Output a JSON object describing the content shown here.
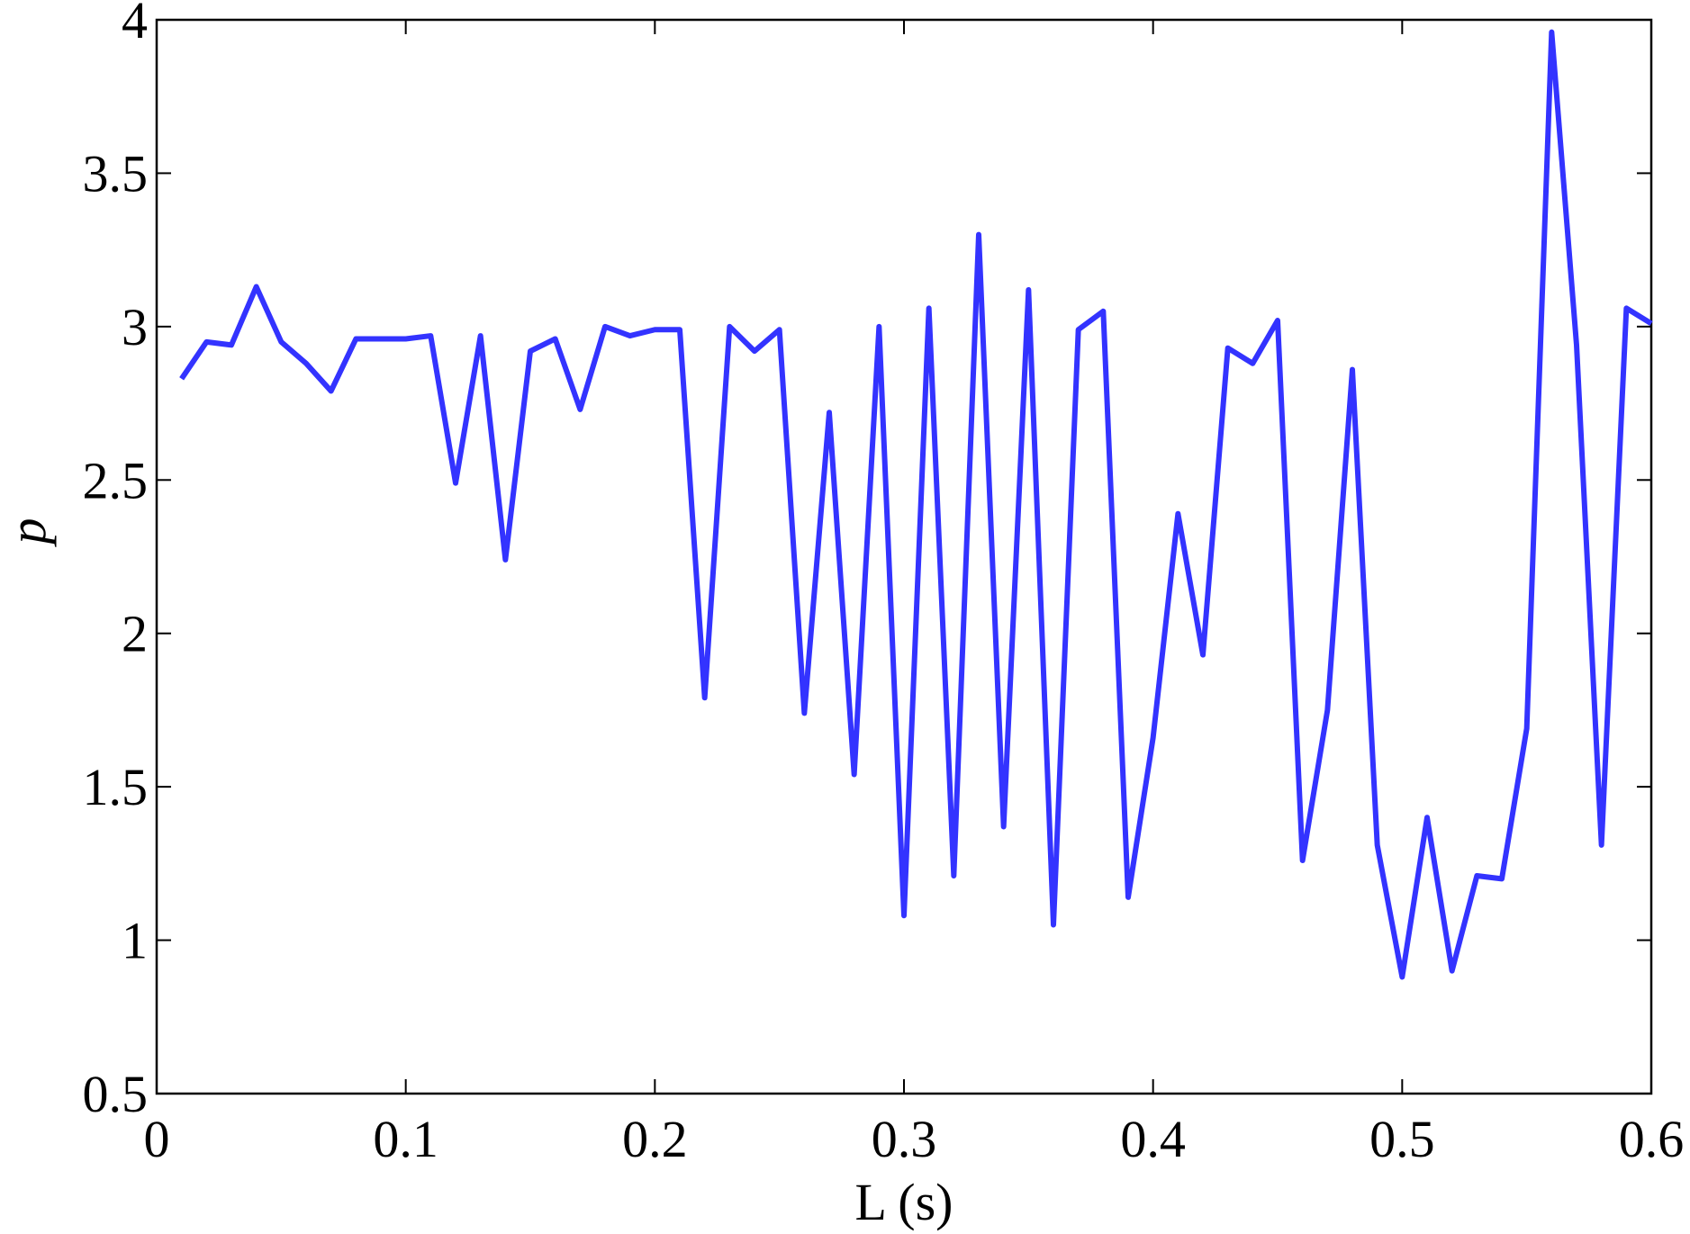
{
  "chart_data": {
    "type": "line",
    "x_label": "L (s)",
    "y_label": "p",
    "x": [
      0.01,
      0.02,
      0.03,
      0.04,
      0.05,
      0.06,
      0.07,
      0.08,
      0.09,
      0.1,
      0.11,
      0.12,
      0.13,
      0.14,
      0.15,
      0.16,
      0.17,
      0.18,
      0.19,
      0.2,
      0.21,
      0.22,
      0.23,
      0.24,
      0.25,
      0.26,
      0.27,
      0.28,
      0.29,
      0.3,
      0.31,
      0.32,
      0.33,
      0.34,
      0.35,
      0.36,
      0.37,
      0.38,
      0.39,
      0.4,
      0.41,
      0.42,
      0.43,
      0.44,
      0.45,
      0.46,
      0.47,
      0.48,
      0.49,
      0.5,
      0.51,
      0.52,
      0.53,
      0.54,
      0.55,
      0.56,
      0.57,
      0.58,
      0.59,
      0.6
    ],
    "series": [
      {
        "color": "#3333ff",
        "values": [
          2.83,
          2.95,
          2.94,
          3.13,
          2.95,
          2.88,
          2.79,
          2.96,
          2.96,
          2.96,
          2.97,
          2.49,
          2.97,
          2.24,
          2.92,
          2.96,
          2.73,
          3.0,
          2.97,
          2.99,
          2.99,
          1.79,
          3.0,
          2.92,
          2.99,
          1.74,
          2.72,
          1.54,
          3.0,
          1.08,
          3.06,
          1.21,
          3.3,
          1.37,
          3.12,
          1.05,
          2.99,
          3.05,
          1.14,
          1.66,
          2.39,
          1.93,
          2.93,
          2.88,
          3.02,
          1.26,
          1.75,
          2.86,
          1.31,
          0.88,
          1.4,
          0.9,
          1.21,
          1.2,
          1.69,
          3.96,
          2.94,
          1.31,
          3.06,
          3.01
        ]
      }
    ],
    "xlim": [
      0,
      0.6
    ],
    "xticks": [
      0,
      0.1,
      0.2,
      0.3,
      0.4,
      0.5,
      0.6
    ],
    "ylim": [
      0.5,
      4
    ],
    "yticks": [
      0.5,
      1,
      1.5,
      2,
      2.5,
      3,
      3.5,
      4
    ]
  }
}
